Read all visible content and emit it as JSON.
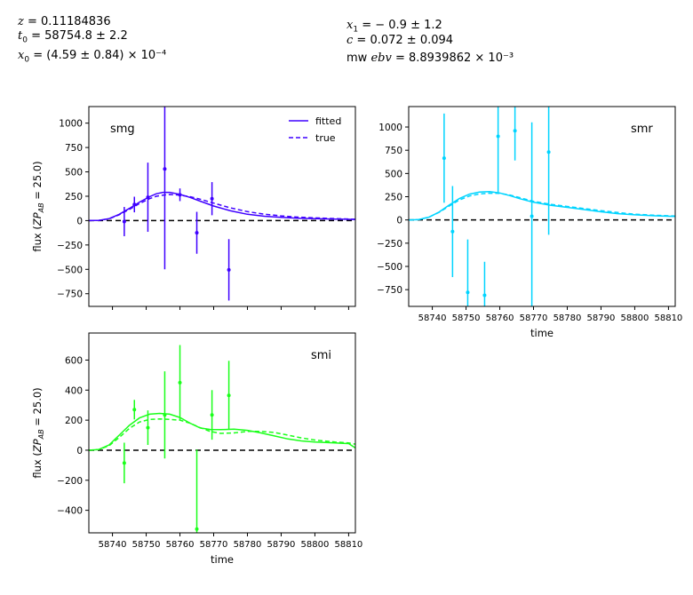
{
  "header": {
    "z": "= 0.11184836",
    "t0": "= 58754.8 ± 2.2",
    "x0": "= (4.59 ± 0.84) × 10⁻⁴",
    "x1": "= − 0.9 ± 1.2",
    "c": "= 0.072 ± 0.094",
    "mwebv": "= 8.8939862 × 10⁻³"
  },
  "chart_data": [
    {
      "type": "line",
      "band": "smg",
      "color": "#3f00ff",
      "xlim": [
        58733,
        58812
      ],
      "ylim": [
        -880,
        1170
      ],
      "yticks": [
        -750,
        -500,
        -250,
        0,
        250,
        500,
        750,
        1000
      ],
      "ylabel": "flux (ZP_AB = 25.0)",
      "xlabel": "",
      "legend": [
        "fitted",
        "true"
      ],
      "points": [
        {
          "x": 58743.5,
          "y": -10,
          "err": 150
        },
        {
          "x": 58746.5,
          "y": 165,
          "err": 80
        },
        {
          "x": 58750.5,
          "y": 240,
          "err": 355
        },
        {
          "x": 58755.5,
          "y": 530,
          "err": 1030
        },
        {
          "x": 58760,
          "y": 265,
          "err": 65
        },
        {
          "x": 58765,
          "y": -125,
          "err": 215
        },
        {
          "x": 58769.5,
          "y": 225,
          "err": 170
        },
        {
          "x": 58774.5,
          "y": -505,
          "err": 315
        }
      ],
      "fitted": {
        "x": [
          58733,
          58736,
          58739,
          58742,
          58745,
          58748,
          58751,
          58753,
          58755,
          58757,
          58760,
          58763,
          58766,
          58770,
          58775,
          58780,
          58785,
          58790,
          58795,
          58800,
          58806,
          58812
        ],
        "y": [
          0,
          3,
          20,
          65,
          125,
          190,
          245,
          275,
          290,
          290,
          270,
          238,
          200,
          150,
          100,
          65,
          45,
          33,
          25,
          20,
          16,
          12
        ]
      },
      "true": {
        "x": [
          58733,
          58736,
          58739,
          58742,
          58745,
          58748,
          58751,
          58753,
          58755,
          58757,
          58760,
          58763,
          58766,
          58770,
          58775,
          58780,
          58785,
          58790,
          58795,
          58800,
          58806,
          58812
        ],
        "y": [
          0,
          3,
          18,
          60,
          115,
          175,
          225,
          250,
          262,
          268,
          262,
          245,
          220,
          180,
          130,
          92,
          66,
          48,
          36,
          28,
          20,
          14
        ]
      }
    },
    {
      "type": "line",
      "band": "smr",
      "color": "#00d4ff",
      "xlim": [
        58733,
        58812
      ],
      "ylim": [
        -930,
        1220
      ],
      "yticks": [
        -750,
        -500,
        -250,
        0,
        250,
        500,
        750,
        1000
      ],
      "ylabel": "",
      "xlabel": "time",
      "xticks": [
        58740,
        58750,
        58760,
        58770,
        58780,
        58790,
        58800,
        58810
      ],
      "points": [
        {
          "x": 58743.5,
          "y": 665,
          "err": 480
        },
        {
          "x": 58746,
          "y": -125,
          "err": 490
        },
        {
          "x": 58750.5,
          "y": -780,
          "err": 570
        },
        {
          "x": 58755.5,
          "y": -810,
          "err": 360
        },
        {
          "x": 58759.5,
          "y": 900,
          "err": 620
        },
        {
          "x": 58764.5,
          "y": 960,
          "err": 320
        },
        {
          "x": 58769.5,
          "y": 40,
          "err": 1010
        },
        {
          "x": 58774.5,
          "y": 730,
          "err": 890
        }
      ],
      "fitted": {
        "x": [
          58733,
          58736,
          58739,
          58742,
          58745,
          58748,
          58751,
          58754,
          58757,
          58760,
          58763,
          58766,
          58770,
          58775,
          58780,
          58785,
          58790,
          58795,
          58800,
          58806,
          58812
        ],
        "y": [
          0,
          5,
          30,
          85,
          160,
          230,
          278,
          300,
          305,
          290,
          262,
          228,
          190,
          158,
          135,
          112,
          88,
          68,
          55,
          45,
          38
        ]
      },
      "true": {
        "x": [
          58733,
          58736,
          58739,
          58742,
          58745,
          58748,
          58751,
          58754,
          58757,
          58760,
          58763,
          58766,
          58770,
          58775,
          58780,
          58785,
          58790,
          58795,
          58800,
          58806,
          58812
        ],
        "y": [
          0,
          5,
          30,
          82,
          150,
          215,
          258,
          280,
          288,
          285,
          268,
          240,
          200,
          168,
          145,
          122,
          100,
          80,
          62,
          50,
          42
        ]
      }
    },
    {
      "type": "line",
      "band": "smi",
      "color": "#1aff1a",
      "xlim": [
        58733,
        58812
      ],
      "ylim": [
        -550,
        780
      ],
      "yticks": [
        -400,
        -200,
        0,
        200,
        400,
        600
      ],
      "ylabel": "flux (ZP_AB = 25.0)",
      "xlabel": "time",
      "xticks": [
        58740,
        58750,
        58760,
        58770,
        58780,
        58790,
        58800,
        58810
      ],
      "points": [
        {
          "x": 58743.5,
          "y": -85,
          "err": 135
        },
        {
          "x": 58746.5,
          "y": 270,
          "err": 65
        },
        {
          "x": 58750.5,
          "y": 150,
          "err": 115
        },
        {
          "x": 58755.5,
          "y": 235,
          "err": 290
        },
        {
          "x": 58760,
          "y": 450,
          "err": 250
        },
        {
          "x": 58765,
          "y": -525,
          "err": 530
        },
        {
          "x": 58769.5,
          "y": 235,
          "err": 165
        },
        {
          "x": 58774.5,
          "y": 365,
          "err": 230
        }
      ],
      "fitted": {
        "x": [
          58733,
          58736,
          58739,
          58742,
          58745,
          58748,
          58751,
          58754,
          58757,
          58760,
          58763,
          58766,
          58769,
          58772,
          58776,
          58780,
          58784,
          58788,
          58792,
          58796,
          58800,
          58806,
          58810,
          58812
        ],
        "y": [
          0,
          5,
          35,
          100,
          165,
          215,
          240,
          245,
          240,
          218,
          180,
          148,
          138,
          137,
          140,
          132,
          115,
          95,
          75,
          62,
          55,
          48,
          44,
          15
        ]
      },
      "true": {
        "x": [
          58733,
          58736,
          58739,
          58742,
          58745,
          58748,
          58751,
          58754,
          58757,
          58760,
          58763,
          58766,
          58769,
          58772,
          58776,
          58780,
          58784,
          58788,
          58792,
          58796,
          58800,
          58806,
          58810,
          58812
        ],
        "y": [
          0,
          5,
          30,
          85,
          145,
          188,
          205,
          208,
          205,
          200,
          180,
          150,
          125,
          112,
          115,
          125,
          125,
          118,
          100,
          82,
          68,
          55,
          48,
          40
        ]
      }
    }
  ]
}
